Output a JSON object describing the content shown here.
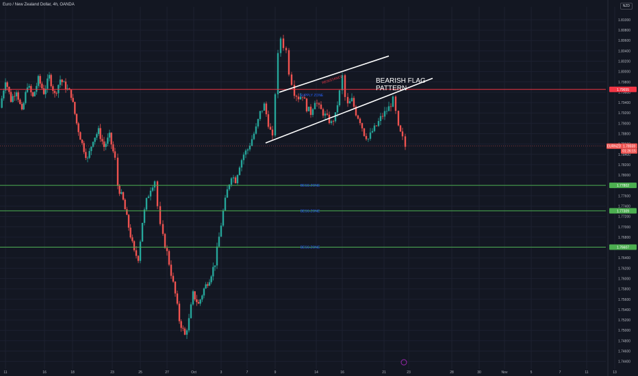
{
  "header": {
    "title": "Euro / New Zealand Dollar, 4h, OANDA",
    "currency": "NZD"
  },
  "colors": {
    "background": "#131722",
    "up": "#26a69a",
    "down": "#ef5350",
    "resistance": "#f23645",
    "support": "#4caf50",
    "zone_text": "#2962ff",
    "annotation": "#ffffff"
  },
  "chart_data": {
    "type": "candlestick",
    "title": "Euro / New Zealand Dollar, 4h, OANDA",
    "y_unit": "NZD",
    "ylim": [
      1.7425,
      1.8125
    ],
    "y_ticks": [
      "1.81000",
      "1.80800",
      "1.80600",
      "1.80400",
      "1.80200",
      "1.80000",
      "1.79800",
      "1.79600",
      "1.79400",
      "1.79200",
      "1.79000",
      "1.78800",
      "1.78600",
      "1.78400",
      "1.78200",
      "1.78000",
      "1.77800",
      "1.77600",
      "1.77400",
      "1.77200",
      "1.77000",
      "1.76800",
      "1.76600",
      "1.76400",
      "1.76200",
      "1.76000",
      "1.75800",
      "1.75600",
      "1.75400",
      "1.75200",
      "1.75000",
      "1.74800",
      "1.74600",
      "1.74400"
    ],
    "x_ticks": [
      "11",
      "16",
      "18",
      "23",
      "25",
      "27",
      "Oct",
      "3",
      "7",
      "9",
      "14",
      "16",
      "21",
      "23",
      "28",
      "30",
      "Nov",
      "5",
      "7",
      "11",
      "13"
    ],
    "price_path": [
      {
        "t": 0,
        "p": 1.793
      },
      {
        "t": 8,
        "p": 1.7985
      },
      {
        "t": 16,
        "p": 1.7945
      },
      {
        "t": 24,
        "p": 1.7965
      },
      {
        "t": 32,
        "p": 1.792
      },
      {
        "t": 40,
        "p": 1.7975
      },
      {
        "t": 48,
        "p": 1.795
      },
      {
        "t": 56,
        "p": 1.7985
      },
      {
        "t": 64,
        "p": 1.796
      },
      {
        "t": 72,
        "p": 1.799
      },
      {
        "t": 80,
        "p": 1.7955
      },
      {
        "t": 88,
        "p": 1.7985
      },
      {
        "t": 96,
        "p": 1.797
      },
      {
        "t": 104,
        "p": 1.7955
      },
      {
        "t": 112,
        "p": 1.79
      },
      {
        "t": 120,
        "p": 1.786
      },
      {
        "t": 128,
        "p": 1.783
      },
      {
        "t": 136,
        "p": 1.787
      },
      {
        "t": 144,
        "p": 1.7885
      },
      {
        "t": 152,
        "p": 1.7855
      },
      {
        "t": 160,
        "p": 1.7875
      },
      {
        "t": 168,
        "p": 1.783
      },
      {
        "t": 172,
        "p": 1.778
      },
      {
        "t": 180,
        "p": 1.775
      },
      {
        "t": 188,
        "p": 1.77
      },
      {
        "t": 196,
        "p": 1.765
      },
      {
        "t": 202,
        "p": 1.764
      },
      {
        "t": 208,
        "p": 1.771
      },
      {
        "t": 214,
        "p": 1.775
      },
      {
        "t": 220,
        "p": 1.7775
      },
      {
        "t": 226,
        "p": 1.779
      },
      {
        "t": 230,
        "p": 1.774
      },
      {
        "t": 234,
        "p": 1.77
      },
      {
        "t": 238,
        "p": 1.768
      },
      {
        "t": 244,
        "p": 1.765
      },
      {
        "t": 250,
        "p": 1.761
      },
      {
        "t": 256,
        "p": 1.757
      },
      {
        "t": 262,
        "p": 1.752
      },
      {
        "t": 270,
        "p": 1.749
      },
      {
        "t": 276,
        "p": 1.752
      },
      {
        "t": 282,
        "p": 1.757
      },
      {
        "t": 290,
        "p": 1.755
      },
      {
        "t": 298,
        "p": 1.758
      },
      {
        "t": 306,
        "p": 1.76
      },
      {
        "t": 314,
        "p": 1.763
      },
      {
        "t": 320,
        "p": 1.768
      },
      {
        "t": 326,
        "p": 1.773
      },
      {
        "t": 332,
        "p": 1.777
      },
      {
        "t": 338,
        "p": 1.78
      },
      {
        "t": 344,
        "p": 1.779
      },
      {
        "t": 350,
        "p": 1.782
      },
      {
        "t": 356,
        "p": 1.784
      },
      {
        "t": 362,
        "p": 1.785
      },
      {
        "t": 368,
        "p": 1.787
      },
      {
        "t": 374,
        "p": 1.789
      },
      {
        "t": 380,
        "p": 1.792
      },
      {
        "t": 386,
        "p": 1.7935
      },
      {
        "t": 392,
        "p": 1.79
      },
      {
        "t": 398,
        "p": 1.787
      },
      {
        "t": 402,
        "p": 1.796
      },
      {
        "t": 406,
        "p": 1.803
      },
      {
        "t": 410,
        "p": 1.8065
      },
      {
        "t": 414,
        "p": 1.805
      },
      {
        "t": 418,
        "p": 1.804
      },
      {
        "t": 422,
        "p": 1.8
      },
      {
        "t": 426,
        "p": 1.798
      },
      {
        "t": 430,
        "p": 1.796
      },
      {
        "t": 436,
        "p": 1.795
      },
      {
        "t": 442,
        "p": 1.7955
      },
      {
        "t": 448,
        "p": 1.793
      },
      {
        "t": 454,
        "p": 1.792
      },
      {
        "t": 460,
        "p": 1.7945
      },
      {
        "t": 466,
        "p": 1.793
      },
      {
        "t": 472,
        "p": 1.792
      },
      {
        "t": 478,
        "p": 1.791
      },
      {
        "t": 484,
        "p": 1.79
      },
      {
        "t": 490,
        "p": 1.7915
      },
      {
        "t": 496,
        "p": 1.796
      },
      {
        "t": 500,
        "p": 1.799
      },
      {
        "t": 504,
        "p": 1.795
      },
      {
        "t": 508,
        "p": 1.7935
      },
      {
        "t": 514,
        "p": 1.7945
      },
      {
        "t": 520,
        "p": 1.792
      },
      {
        "t": 526,
        "p": 1.7905
      },
      {
        "t": 532,
        "p": 1.788
      },
      {
        "t": 538,
        "p": 1.787
      },
      {
        "t": 544,
        "p": 1.7885
      },
      {
        "t": 550,
        "p": 1.7895
      },
      {
        "t": 556,
        "p": 1.791
      },
      {
        "t": 562,
        "p": 1.792
      },
      {
        "t": 568,
        "p": 1.793
      },
      {
        "t": 574,
        "p": 1.7945
      },
      {
        "t": 578,
        "p": 1.792
      },
      {
        "t": 582,
        "p": 1.789
      },
      {
        "t": 588,
        "p": 1.787
      },
      {
        "t": 592,
        "p": 1.7855
      }
    ],
    "horizontal_lines": [
      {
        "price": 1.79655,
        "label": "1.79655",
        "kind": "resistance"
      },
      {
        "price": 1.77802,
        "label": "1.77802",
        "kind": "support",
        "zone": "BESS ZONE"
      },
      {
        "price": 1.77309,
        "label": "1.77309",
        "kind": "support",
        "zone": "BESS ZONE"
      },
      {
        "price": 1.76607,
        "label": "1.76607",
        "kind": "support",
        "zone": "BESS ZONE"
      }
    ],
    "current_price": {
      "symbol": "EURNZD",
      "price": "1.78559",
      "countdown": "01:26:15"
    },
    "annotations": {
      "resistance_label": "RESISTANCE",
      "upper_zone_label": "SUPPLY ZONE",
      "pattern_label_line1": "BEARISH FLAG",
      "pattern_label_line2": "PATTERN",
      "flag_lines": [
        {
          "t1": 408,
          "p1": 1.796,
          "t2": 568,
          "p2": 1.803
        },
        {
          "t1": 388,
          "p1": 1.7862,
          "t2": 632,
          "p2": 1.7987
        }
      ]
    }
  }
}
